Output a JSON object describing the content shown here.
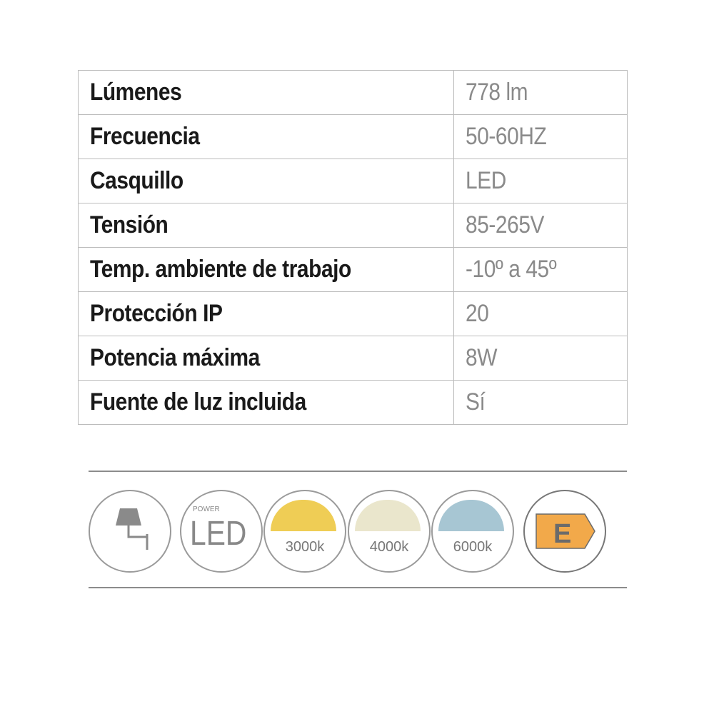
{
  "specs": [
    {
      "label": "Lúmenes",
      "value": "778 lm"
    },
    {
      "label": "Frecuencia",
      "value": "50-60HZ"
    },
    {
      "label": "Casquillo",
      "value": "LED"
    },
    {
      "label": "Tensión",
      "value": "85-265V"
    },
    {
      "label": "Temp. ambiente de trabajo",
      "value": "-10º a 45º"
    },
    {
      "label": "Protección IP",
      "value": "20"
    },
    {
      "label": "Potencia máxima",
      "value": "8W"
    },
    {
      "label": "Fuente de luz incluida",
      "value": "Sí"
    }
  ],
  "icons": {
    "lamp": "wall-lamp-icon",
    "led": {
      "small": "POWER",
      "big": "LED"
    },
    "temps": [
      {
        "label": "3000k",
        "color": "#efcd55"
      },
      {
        "label": "4000k",
        "color": "#eae6cc"
      },
      {
        "label": "6000k",
        "color": "#a7c6d3"
      }
    ],
    "energy": {
      "label": "E",
      "color": "#f2a94a"
    }
  }
}
